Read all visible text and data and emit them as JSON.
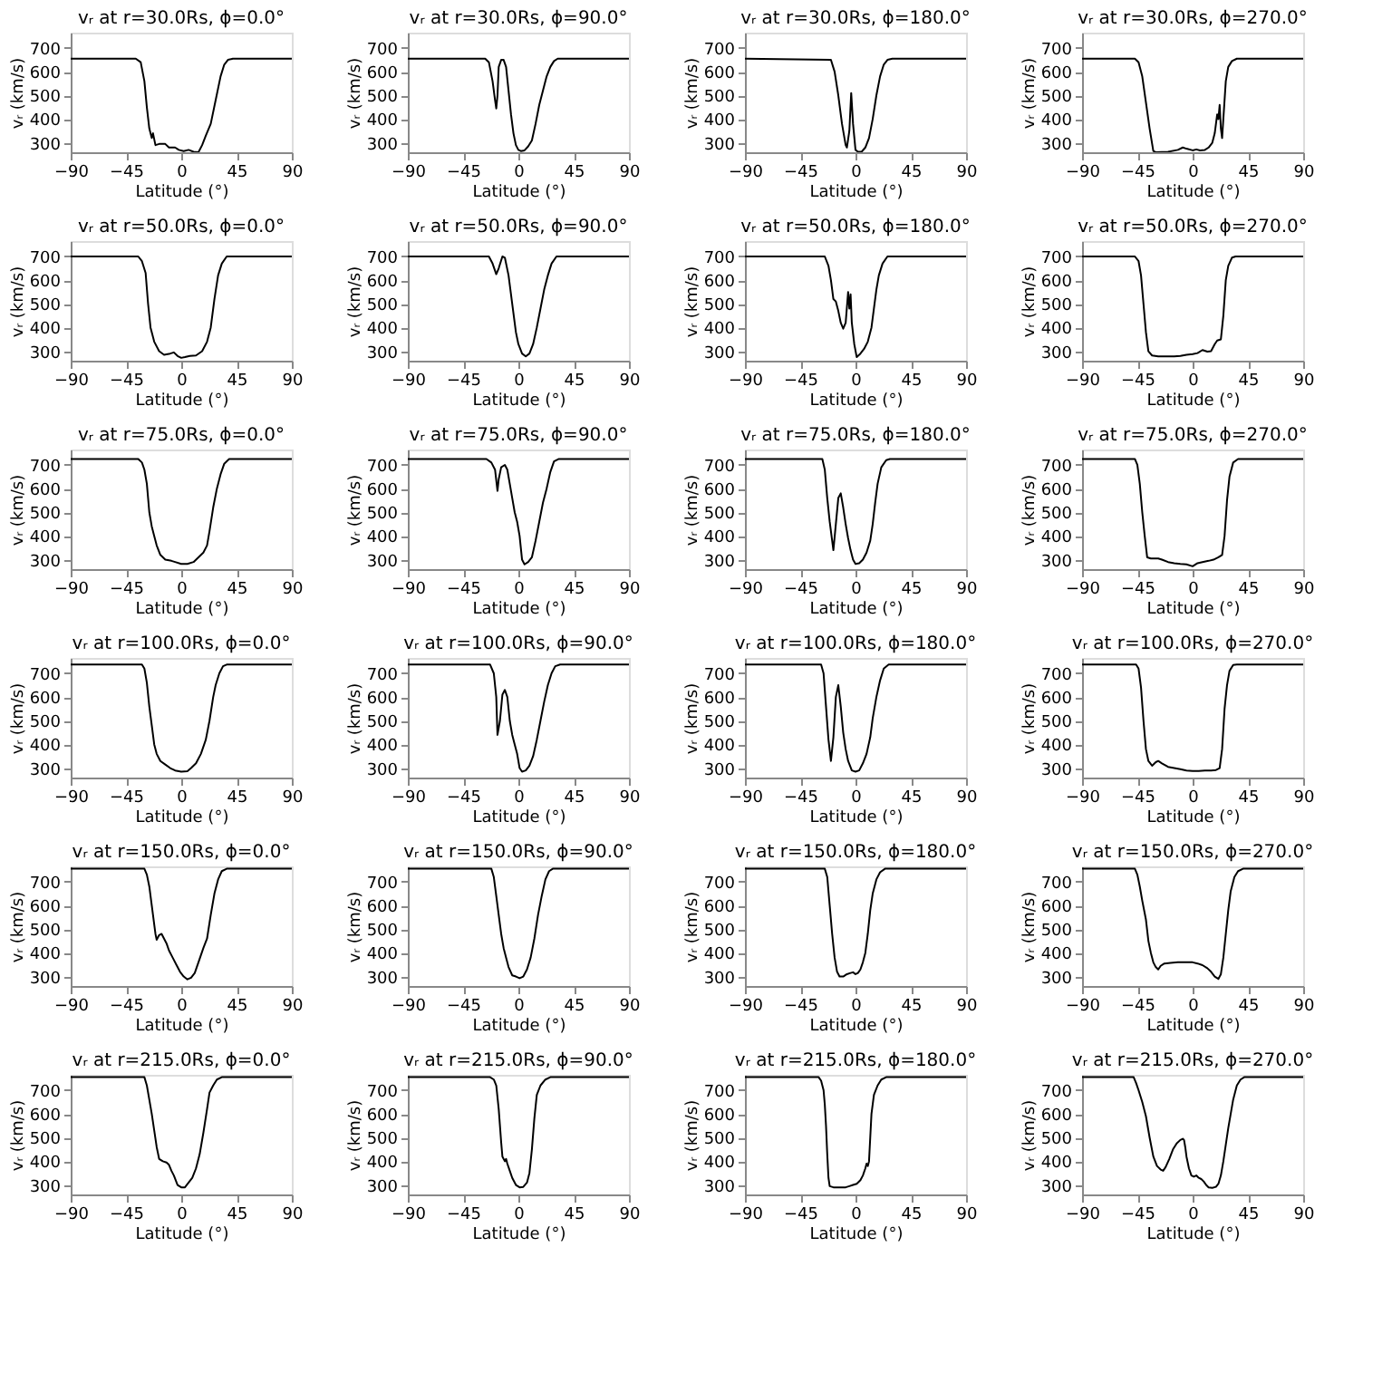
{
  "chart_data": [
    {
      "type": "line",
      "title": "vᵣ at r=30.0Rs, ϕ=0.0°",
      "xlabel": "Latitude (°)",
      "ylabel": "vᵣ (km/s)",
      "color": "#000000",
      "xlim": [
        -90,
        90
      ],
      "ylim": [
        260,
        765
      ],
      "xticks": [
        -90,
        -45,
        0,
        45,
        90
      ],
      "yticks": [
        300,
        400,
        500,
        600,
        700
      ],
      "x": [
        -90,
        -37,
        -33,
        -30,
        -28,
        -26,
        -24,
        -23,
        -21,
        -18,
        -13,
        -10,
        -5,
        -2,
        2,
        6,
        10,
        14,
        17,
        20,
        24,
        28,
        32,
        35,
        38,
        42,
        90
      ],
      "values": [
        655,
        655,
        640,
        560,
        450,
        360,
        320,
        340,
        290,
        295,
        295,
        280,
        280,
        270,
        265,
        270,
        262,
        260,
        290,
        330,
        380,
        480,
        580,
        630,
        650,
        655,
        655
      ]
    },
    {
      "type": "line",
      "title": "vᵣ at r=30.0Rs, ϕ=90.0°",
      "xlabel": "Latitude (°)",
      "ylabel": "vᵣ (km/s)",
      "color": "#000000",
      "xlim": [
        -90,
        90
      ],
      "ylim": [
        260,
        765
      ],
      "xticks": [
        -90,
        -45,
        0,
        45,
        90
      ],
      "yticks": [
        300,
        400,
        500,
        600,
        700
      ],
      "x": [
        -90,
        -27,
        -24,
        -21,
        -19,
        -18,
        -17,
        -16,
        -14,
        -12,
        -10,
        -8,
        -6,
        -4,
        -2,
        0,
        2,
        5,
        8,
        11,
        14,
        17,
        20,
        23,
        26,
        29,
        32,
        90
      ],
      "values": [
        655,
        655,
        640,
        560,
        480,
        445,
        500,
        620,
        650,
        650,
        620,
        520,
        420,
        340,
        290,
        270,
        265,
        268,
        285,
        310,
        380,
        460,
        520,
        580,
        620,
        645,
        655,
        655
      ]
    },
    {
      "type": "line",
      "title": "vᵣ at r=30.0Rs, ϕ=180.0°",
      "xlabel": "Latitude (°)",
      "ylabel": "vᵣ (km/s)",
      "color": "#000000",
      "xlim": [
        -90,
        90
      ],
      "ylim": [
        260,
        765
      ],
      "xticks": [
        -90,
        -45,
        0,
        45,
        90
      ],
      "yticks": [
        300,
        400,
        500,
        600,
        700
      ],
      "x": [
        -90,
        -20,
        -17,
        -14,
        -11,
        -8,
        -7,
        -5,
        -3.5,
        -2,
        0,
        2,
        5,
        8,
        11,
        14,
        17,
        20,
        23,
        26,
        30,
        90
      ],
      "values": [
        655,
        650,
        600,
        500,
        380,
        290,
        280,
        350,
        510,
        380,
        270,
        262,
        262,
        280,
        320,
        400,
        500,
        580,
        630,
        650,
        655,
        655
      ]
    },
    {
      "type": "line",
      "title": "vᵣ at r=30.0Rs, ϕ=270.0°",
      "xlabel": "Latitude (°)",
      "ylabel": "vᵣ (km/s)",
      "color": "#000000",
      "xlim": [
        -90,
        90
      ],
      "ylim": [
        260,
        765
      ],
      "xticks": [
        -90,
        -45,
        0,
        45,
        90
      ],
      "yticks": [
        300,
        400,
        500,
        600,
        700
      ],
      "x": [
        -90,
        -47,
        -44,
        -41,
        -38,
        -35,
        -32,
        -30,
        -20,
        -12,
        -8,
        -5,
        0,
        3,
        6,
        10,
        13,
        16,
        18,
        20,
        21,
        22,
        23,
        24,
        25,
        27,
        29,
        32,
        36,
        90
      ],
      "values": [
        655,
        655,
        640,
        580,
        470,
        360,
        265,
        260,
        262,
        270,
        280,
        275,
        268,
        272,
        268,
        270,
        280,
        300,
        340,
        420,
        400,
        460,
        360,
        320,
        400,
        560,
        620,
        645,
        655,
        655
      ]
    },
    {
      "type": "line",
      "title": "vᵣ at r=50.0Rs, ϕ=0.0°",
      "xlabel": "Latitude (°)",
      "ylabel": "vᵣ (km/s)",
      "color": "#000000",
      "xlim": [
        -90,
        90
      ],
      "ylim": [
        260,
        765
      ],
      "xticks": [
        -90,
        -45,
        0,
        45,
        90
      ],
      "yticks": [
        300,
        400,
        500,
        600,
        700
      ],
      "x": [
        -90,
        -35,
        -32,
        -29,
        -27,
        -25,
        -22,
        -18,
        -14,
        -9,
        -6,
        -3,
        0,
        3,
        7,
        12,
        17,
        21,
        24,
        27,
        30,
        33,
        37,
        90
      ],
      "values": [
        700,
        700,
        680,
        630,
        500,
        400,
        340,
        300,
        285,
        290,
        295,
        280,
        272,
        275,
        280,
        282,
        300,
        340,
        400,
        520,
        620,
        670,
        700,
        700
      ]
    },
    {
      "type": "line",
      "title": "vᵣ at r=50.0Rs, ϕ=90.0°",
      "xlabel": "Latitude (°)",
      "ylabel": "vᵣ (km/s)",
      "color": "#000000",
      "xlim": [
        -90,
        90
      ],
      "ylim": [
        260,
        765
      ],
      "xticks": [
        -90,
        -45,
        0,
        45,
        90
      ],
      "yticks": [
        300,
        400,
        500,
        600,
        700
      ],
      "x": [
        -90,
        -24,
        -21,
        -18,
        -16,
        -13,
        -11,
        -8,
        -5,
        -2,
        0,
        3,
        6,
        9,
        12,
        15,
        18,
        21,
        24,
        27,
        31,
        90
      ],
      "values": [
        700,
        700,
        670,
        625,
        650,
        700,
        695,
        620,
        500,
        380,
        330,
        290,
        278,
        290,
        330,
        400,
        480,
        560,
        620,
        670,
        700,
        700
      ]
    },
    {
      "type": "line",
      "title": "vᵣ at r=50.0Rs, ϕ=180.0°",
      "xlabel": "Latitude (°)",
      "ylabel": "vᵣ (km/s)",
      "color": "#000000",
      "xlim": [
        -90,
        90
      ],
      "ylim": [
        260,
        765
      ],
      "xticks": [
        -90,
        -45,
        0,
        45,
        90
      ],
      "yticks": [
        300,
        400,
        500,
        600,
        700
      ],
      "x": [
        -90,
        -25,
        -22,
        -20,
        -18,
        -16,
        -14,
        -12,
        -10,
        -8,
        -6,
        -5,
        -4,
        -3,
        -1,
        1,
        4,
        7,
        10,
        13,
        15,
        17,
        19,
        22,
        26,
        90
      ],
      "values": [
        700,
        700,
        660,
        600,
        520,
        510,
        470,
        420,
        395,
        420,
        550,
        480,
        540,
        420,
        330,
        275,
        290,
        310,
        340,
        400,
        480,
        560,
        620,
        670,
        700,
        700
      ]
    },
    {
      "type": "line",
      "title": "vᵣ at r=50.0Rs, ϕ=270.0°",
      "xlabel": "Latitude (°)",
      "ylabel": "vᵣ (km/s)",
      "color": "#000000",
      "xlim": [
        -90,
        90
      ],
      "ylim": [
        260,
        765
      ],
      "xticks": [
        -90,
        -45,
        0,
        45,
        90
      ],
      "yticks": [
        300,
        400,
        500,
        600,
        700
      ],
      "x": [
        -90,
        -47,
        -44,
        -42,
        -40,
        -38,
        -36,
        -33,
        -28,
        -15,
        -10,
        -5,
        0,
        4,
        8,
        12,
        15,
        18,
        20,
        23,
        25,
        27,
        29,
        32,
        35,
        90
      ],
      "values": [
        700,
        700,
        680,
        620,
        500,
        380,
        300,
        282,
        278,
        278,
        280,
        285,
        288,
        292,
        305,
        298,
        300,
        330,
        345,
        350,
        450,
        600,
        660,
        695,
        700,
        700
      ]
    },
    {
      "type": "line",
      "title": "vᵣ at r=75.0Rs, ϕ=0.0°",
      "xlabel": "Latitude (°)",
      "ylabel": "vᵣ (km/s)",
      "color": "#000000",
      "xlim": [
        -90,
        90
      ],
      "ylim": [
        260,
        765
      ],
      "xticks": [
        -90,
        -45,
        0,
        45,
        90
      ],
      "yticks": [
        300,
        400,
        500,
        600,
        700
      ],
      "x": [
        -90,
        -35,
        -32,
        -30,
        -28,
        -26,
        -24,
        -22,
        -20,
        -17,
        -13,
        -8,
        -5,
        0,
        5,
        10,
        14,
        18,
        21,
        23,
        26,
        29,
        32,
        35,
        39,
        90
      ],
      "values": [
        725,
        725,
        710,
        680,
        620,
        500,
        440,
        400,
        360,
        320,
        300,
        295,
        290,
        282,
        282,
        290,
        310,
        330,
        360,
        420,
        520,
        600,
        660,
        705,
        725,
        725
      ]
    },
    {
      "type": "line",
      "title": "vᵣ at r=75.0Rs, ϕ=90.0°",
      "xlabel": "Latitude (°)",
      "ylabel": "vᵣ (km/s)",
      "color": "#000000",
      "xlim": [
        -90,
        90
      ],
      "ylim": [
        260,
        765
      ],
      "xticks": [
        -90,
        -45,
        0,
        45,
        90
      ],
      "yticks": [
        300,
        400,
        500,
        600,
        700
      ],
      "x": [
        -90,
        -26,
        -22,
        -19,
        -17,
        -16,
        -14,
        -11,
        -9,
        -7,
        -5,
        -3,
        -1,
        1,
        3,
        5,
        8,
        11,
        14,
        17,
        20,
        23,
        26,
        29,
        33,
        90
      ],
      "values": [
        725,
        725,
        710,
        680,
        590,
        640,
        690,
        700,
        680,
        620,
        560,
        500,
        460,
        400,
        300,
        280,
        290,
        310,
        380,
        460,
        540,
        600,
        670,
        715,
        725,
        725
      ]
    },
    {
      "type": "line",
      "title": "vᵣ at r=75.0Rs, ϕ=180.0°",
      "xlabel": "Latitude (°)",
      "ylabel": "vᵣ (km/s)",
      "color": "#000000",
      "xlim": [
        -90,
        90
      ],
      "ylim": [
        260,
        765
      ],
      "xticks": [
        -90,
        -45,
        0,
        45,
        90
      ],
      "yticks": [
        300,
        400,
        500,
        600,
        700
      ],
      "x": [
        -90,
        -27,
        -25,
        -23,
        -21,
        -19,
        -18,
        -16,
        -14,
        -12,
        -10,
        -8,
        -6,
        -4,
        -2,
        0,
        3,
        6,
        9,
        12,
        14,
        16,
        18,
        21,
        25,
        28,
        90
      ],
      "values": [
        725,
        725,
        680,
        560,
        460,
        380,
        340,
        450,
        560,
        580,
        520,
        450,
        390,
        340,
        300,
        282,
        285,
        300,
        330,
        380,
        450,
        540,
        620,
        690,
        720,
        725,
        725
      ]
    },
    {
      "type": "line",
      "title": "vᵣ at r=75.0Rs, ϕ=270.0°",
      "xlabel": "Latitude (°)",
      "ylabel": "vᵣ (km/s)",
      "color": "#000000",
      "xlim": [
        -90,
        90
      ],
      "ylim": [
        260,
        765
      ],
      "xticks": [
        -90,
        -45,
        0,
        45,
        90
      ],
      "yticks": [
        300,
        400,
        500,
        600,
        700
      ],
      "x": [
        -90,
        -47,
        -45,
        -43,
        -41,
        -39,
        -37,
        -34,
        -28,
        -25,
        -20,
        -15,
        -10,
        -5,
        0,
        4,
        8,
        13,
        17,
        21,
        24,
        26,
        28,
        30,
        33,
        37,
        90
      ],
      "values": [
        725,
        725,
        700,
        620,
        500,
        400,
        310,
        305,
        305,
        300,
        290,
        285,
        282,
        280,
        272,
        285,
        290,
        295,
        300,
        310,
        320,
        400,
        550,
        650,
        710,
        725,
        725
      ]
    },
    {
      "type": "line",
      "title": "vᵣ at r=100.0Rs, ϕ=0.0°",
      "xlabel": "Latitude (°)",
      "ylabel": "vᵣ (km/s)",
      "color": "#000000",
      "xlim": [
        -90,
        90
      ],
      "ylim": [
        260,
        765
      ],
      "xticks": [
        -90,
        -45,
        0,
        45,
        90
      ],
      "yticks": [
        300,
        400,
        500,
        600,
        700
      ],
      "x": [
        -90,
        -32,
        -30,
        -28,
        -26,
        -24,
        -22,
        -20,
        -17,
        -13,
        -9,
        -5,
        0,
        5,
        8,
        12,
        16,
        20,
        23,
        26,
        28,
        31,
        34,
        37,
        90
      ],
      "values": [
        737,
        737,
        720,
        660,
        560,
        480,
        400,
        360,
        330,
        315,
        300,
        290,
        285,
        287,
        300,
        320,
        360,
        420,
        500,
        600,
        650,
        700,
        730,
        737,
        737
      ]
    },
    {
      "type": "line",
      "title": "vᵣ at r=100.0Rs, ϕ=90.0°",
      "xlabel": "Latitude (°)",
      "ylabel": "vᵣ (km/s)",
      "color": "#000000",
      "xlim": [
        -90,
        90
      ],
      "ylim": [
        260,
        765
      ],
      "xticks": [
        -90,
        -45,
        0,
        45,
        90
      ],
      "yticks": [
        300,
        400,
        500,
        600,
        700
      ],
      "x": [
        -90,
        -23,
        -20,
        -18,
        -17,
        -15,
        -13,
        -11,
        -9,
        -7,
        -5,
        -3,
        -1,
        1,
        3,
        6,
        9,
        12,
        15,
        18,
        21,
        24,
        27,
        30,
        34,
        90
      ],
      "values": [
        737,
        737,
        700,
        600,
        440,
        500,
        610,
        630,
        600,
        500,
        440,
        400,
        360,
        300,
        285,
        290,
        310,
        350,
        420,
        500,
        580,
        650,
        700,
        730,
        737,
        737
      ]
    },
    {
      "type": "line",
      "title": "vᵣ at r=100.0Rs, ϕ=180.0°",
      "xlabel": "Latitude (°)",
      "ylabel": "vᵣ (km/s)",
      "color": "#000000",
      "xlim": [
        -90,
        90
      ],
      "ylim": [
        260,
        765
      ],
      "xticks": [
        -90,
        -45,
        0,
        45,
        90
      ],
      "yticks": [
        300,
        400,
        500,
        600,
        700
      ],
      "x": [
        -90,
        -28,
        -26,
        -24,
        -22,
        -20,
        -18,
        -16,
        -14,
        -12,
        -10,
        -8,
        -6,
        -3,
        0,
        3,
        6,
        9,
        12,
        14,
        17,
        20,
        23,
        27,
        90
      ],
      "values": [
        737,
        737,
        700,
        560,
        420,
        330,
        430,
        600,
        650,
        560,
        450,
        380,
        330,
        290,
        285,
        290,
        320,
        360,
        430,
        510,
        600,
        670,
        720,
        737,
        737
      ]
    },
    {
      "type": "line",
      "title": "vᵣ at r=100.0Rs, ϕ=270.0°",
      "xlabel": "Latitude (°)",
      "ylabel": "vᵣ (km/s)",
      "color": "#000000",
      "xlim": [
        -90,
        90
      ],
      "ylim": [
        260,
        765
      ],
      "xticks": [
        -90,
        -45,
        0,
        45,
        90
      ],
      "yticks": [
        300,
        400,
        500,
        600,
        700
      ],
      "x": [
        -90,
        -46,
        -44,
        -42,
        -40,
        -38,
        -36,
        -33,
        -30,
        -28,
        -25,
        -20,
        -15,
        -10,
        -5,
        0,
        5,
        10,
        15,
        19,
        22,
        24,
        26,
        28,
        30,
        33,
        36,
        90
      ],
      "values": [
        737,
        737,
        720,
        640,
        500,
        380,
        330,
        310,
        325,
        330,
        320,
        305,
        300,
        295,
        290,
        288,
        288,
        290,
        290,
        292,
        300,
        380,
        550,
        650,
        710,
        735,
        737,
        737
      ]
    },
    {
      "type": "line",
      "title": "vᵣ at r=150.0Rs, ϕ=0.0°",
      "xlabel": "Latitude (°)",
      "ylabel": "vᵣ (km/s)",
      "color": "#000000",
      "xlim": [
        -90,
        90
      ],
      "ylim": [
        260,
        765
      ],
      "xticks": [
        -90,
        -45,
        0,
        45,
        90
      ],
      "yticks": [
        300,
        400,
        500,
        600,
        700
      ],
      "x": [
        -90,
        -30,
        -28,
        -26,
        -24,
        -22,
        -21,
        -20,
        -18,
        -16,
        -14,
        -12,
        -10,
        -7,
        -4,
        -1,
        2,
        5,
        8,
        11,
        14,
        18,
        21,
        24,
        27,
        30,
        33,
        37,
        90
      ],
      "values": [
        755,
        755,
        730,
        680,
        600,
        520,
        480,
        455,
        475,
        480,
        460,
        440,
        410,
        380,
        350,
        320,
        300,
        288,
        295,
        315,
        360,
        420,
        460,
        560,
        650,
        710,
        745,
        755,
        755
      ]
    },
    {
      "type": "line",
      "title": "vᵣ at r=150.0Rs, ϕ=90.0°",
      "xlabel": "Latitude (°)",
      "ylabel": "vᵣ (km/s)",
      "color": "#000000",
      "xlim": [
        -90,
        90
      ],
      "ylim": [
        260,
        765
      ],
      "xticks": [
        -90,
        -45,
        0,
        45,
        90
      ],
      "yticks": [
        300,
        400,
        500,
        600,
        700
      ],
      "x": [
        -90,
        -22,
        -20,
        -18,
        -16,
        -14,
        -12,
        -10,
        -8,
        -5,
        -2,
        1,
        4,
        7,
        10,
        13,
        16,
        19,
        22,
        25,
        28,
        90
      ],
      "values": [
        755,
        755,
        720,
        640,
        560,
        480,
        420,
        380,
        340,
        305,
        300,
        293,
        300,
        330,
        380,
        460,
        560,
        640,
        710,
        745,
        755,
        755
      ]
    },
    {
      "type": "line",
      "title": "vᵣ at r=150.0Rs, ϕ=180.0°",
      "xlabel": "Latitude (°)",
      "ylabel": "vᵣ (km/s)",
      "color": "#000000",
      "xlim": [
        -90,
        90
      ],
      "ylim": [
        260,
        765
      ],
      "xticks": [
        -90,
        -45,
        0,
        45,
        90
      ],
      "yticks": [
        300,
        400,
        500,
        600,
        700
      ],
      "x": [
        -90,
        -25,
        -23,
        -21,
        -19,
        -17,
        -15,
        -13,
        -10,
        -7,
        -4,
        -2,
        0,
        2,
        4,
        6,
        8,
        10,
        12,
        14,
        17,
        20,
        24,
        90
      ],
      "values": [
        755,
        755,
        720,
        600,
        480,
        380,
        320,
        300,
        300,
        310,
        315,
        318,
        310,
        315,
        330,
        360,
        400,
        480,
        580,
        650,
        710,
        740,
        755,
        755
      ]
    },
    {
      "type": "line",
      "title": "vᵣ at r=150.0Rs, ϕ=270.0°",
      "xlabel": "Latitude (°)",
      "ylabel": "vᵣ (km/s)",
      "color": "#000000",
      "xlim": [
        -90,
        90
      ],
      "ylim": [
        260,
        765
      ],
      "xticks": [
        -90,
        -45,
        0,
        45,
        90
      ],
      "yticks": [
        300,
        400,
        500,
        600,
        700
      ],
      "x": [
        -90,
        -47,
        -45,
        -43,
        -41,
        -38,
        -36,
        -34,
        -32,
        -30,
        -28,
        -26,
        -23,
        -18,
        -12,
        -5,
        0,
        4,
        8,
        12,
        15,
        18,
        21,
        23,
        25,
        27,
        29,
        31,
        34,
        37,
        41,
        90
      ],
      "values": [
        755,
        755,
        730,
        680,
        620,
        540,
        450,
        400,
        360,
        340,
        330,
        345,
        355,
        358,
        360,
        360,
        360,
        355,
        348,
        335,
        320,
        300,
        290,
        310,
        380,
        480,
        580,
        660,
        720,
        745,
        755,
        755
      ]
    },
    {
      "type": "line",
      "title": "vᵣ at r=215.0Rs, ϕ=0.0°",
      "xlabel": "Latitude (°)",
      "ylabel": "vᵣ (km/s)",
      "color": "#000000",
      "xlim": [
        -90,
        90
      ],
      "ylim": [
        260,
        765
      ],
      "xticks": [
        -90,
        -45,
        0,
        45,
        90
      ],
      "yticks": [
        300,
        400,
        500,
        600,
        700
      ],
      "x": [
        -90,
        -30,
        -28,
        -26,
        -24,
        -22,
        -20,
        -18,
        -15,
        -12,
        -10,
        -8,
        -6,
        -3,
        0,
        3,
        6,
        9,
        12,
        15,
        18,
        21,
        23,
        26,
        29,
        33,
        90
      ],
      "values": [
        755,
        755,
        720,
        660,
        600,
        530,
        460,
        410,
        400,
        395,
        385,
        360,
        340,
        300,
        290,
        290,
        310,
        330,
        370,
        430,
        520,
        620,
        690,
        720,
        745,
        755,
        755
      ]
    },
    {
      "type": "line",
      "title": "vᵣ at r=215.0Rs, ϕ=90.0°",
      "xlabel": "Latitude (°)",
      "ylabel": "vᵣ (km/s)",
      "color": "#000000",
      "xlim": [
        -90,
        90
      ],
      "ylim": [
        260,
        765
      ],
      "xticks": [
        -90,
        -45,
        0,
        45,
        90
      ],
      "yticks": [
        300,
        400,
        500,
        600,
        700
      ],
      "x": [
        -90,
        -23,
        -20,
        -18,
        -16,
        -14,
        -13,
        -11,
        -10,
        -9,
        -7,
        -5,
        -2,
        1,
        4,
        7,
        9,
        11,
        13,
        15,
        18,
        22,
        26,
        90
      ],
      "values": [
        755,
        755,
        745,
        720,
        620,
        480,
        420,
        400,
        410,
        390,
        360,
        330,
        300,
        290,
        292,
        310,
        350,
        450,
        580,
        680,
        720,
        745,
        755,
        755
      ]
    },
    {
      "type": "line",
      "title": "vᵣ at r=215.0Rs, ϕ=180.0°",
      "xlabel": "Latitude (°)",
      "ylabel": "vᵣ (km/s)",
      "color": "#000000",
      "xlim": [
        -90,
        90
      ],
      "ylim": [
        260,
        765
      ],
      "xticks": [
        -90,
        -45,
        0,
        45,
        90
      ],
      "yticks": [
        300,
        400,
        500,
        600,
        700
      ],
      "x": [
        -90,
        -30,
        -28,
        -26,
        -25,
        -24,
        -23,
        -22,
        -21,
        -18,
        -13,
        -8,
        -5,
        -2,
        1,
        4,
        6,
        8,
        9,
        10,
        11,
        12,
        13,
        15,
        18,
        21,
        25,
        90
      ],
      "values": [
        755,
        755,
        740,
        700,
        640,
        550,
        430,
        330,
        295,
        290,
        290,
        290,
        295,
        300,
        305,
        320,
        340,
        370,
        390,
        380,
        400,
        500,
        600,
        680,
        720,
        745,
        755,
        755
      ]
    },
    {
      "type": "line",
      "title": "vᵣ at r=215.0Rs, ϕ=270.0°",
      "xlabel": "Latitude (°)",
      "ylabel": "vᵣ (km/s)",
      "color": "#000000",
      "xlim": [
        -90,
        90
      ],
      "ylim": [
        260,
        765
      ],
      "xticks": [
        -90,
        -45,
        0,
        45,
        90
      ],
      "yticks": [
        300,
        400,
        500,
        600,
        700
      ],
      "x": [
        -90,
        -48,
        -46,
        -44,
        -41,
        -38,
        -35,
        -32,
        -29,
        -26,
        -24,
        -22,
        -19,
        -16,
        -13,
        -10,
        -8,
        -7,
        -6,
        -5,
        -3,
        -1,
        1,
        3,
        5,
        7,
        9,
        11,
        13,
        16,
        19,
        21,
        23,
        25,
        27,
        29,
        31,
        33,
        36,
        39,
        42,
        90
      ],
      "values": [
        755,
        755,
        730,
        700,
        650,
        590,
        500,
        420,
        380,
        365,
        360,
        375,
        410,
        450,
        475,
        490,
        495,
        490,
        460,
        420,
        370,
        340,
        335,
        340,
        330,
        325,
        315,
        300,
        290,
        288,
        292,
        305,
        340,
        400,
        470,
        540,
        600,
        660,
        720,
        745,
        755,
        755
      ]
    }
  ]
}
